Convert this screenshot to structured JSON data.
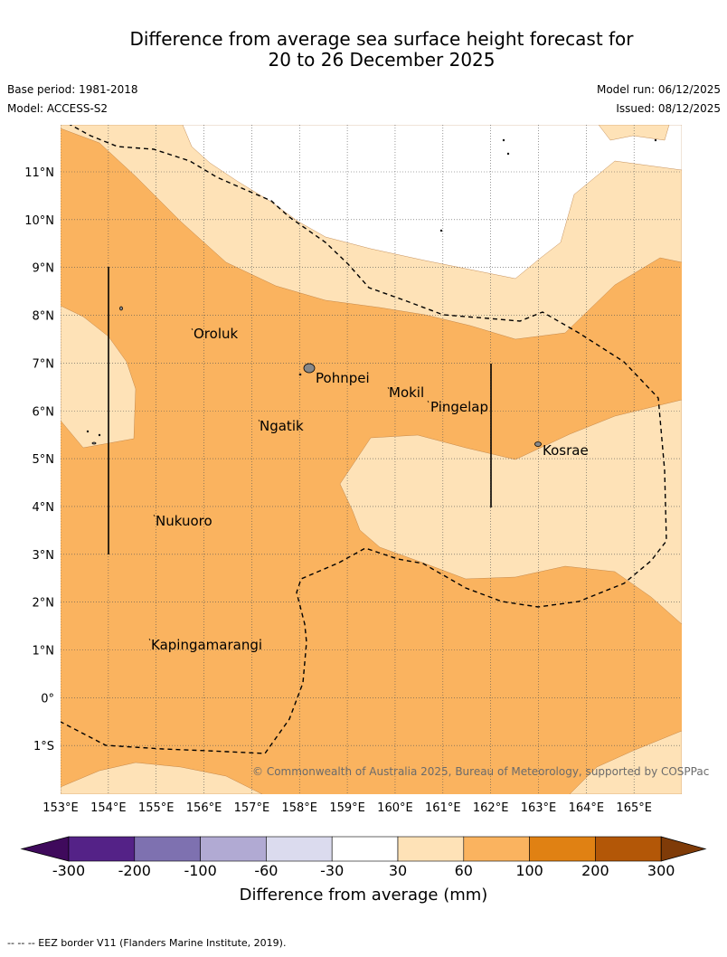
{
  "title_line1": "Difference from average sea surface height forecast for",
  "title_line2": "20 to 26 December 2025",
  "base_period": "Base period: 1981-2018",
  "model": "Model: ACCESS-S2",
  "model_run": "Model run: 06/12/2025",
  "issued": "Issued: 08/12/2025",
  "lon_ticks": [
    "153°E",
    "154°E",
    "155°E",
    "156°E",
    "157°E",
    "158°E",
    "159°E",
    "160°E",
    "161°E",
    "162°E",
    "163°E",
    "164°E",
    "165°E"
  ],
  "lat_ticks": [
    "11°N",
    "10°N",
    "9°N",
    "8°N",
    "7°N",
    "6°N",
    "5°N",
    "4°N",
    "3°N",
    "2°N",
    "1°N",
    "0°",
    "1°S"
  ],
  "places": [
    "Oroluk",
    "Pohnpei",
    "Mokil",
    "Pingelap",
    "Ngatik",
    "Kosrae",
    "Nukuoro",
    "Kapingamarangi"
  ],
  "copyright": "© Commonwealth of Australia 2025, Bureau of Meteorology, supported by COSPPac",
  "colorbar": {
    "ticks": [
      "-300",
      "-200",
      "-100",
      "-60",
      "-30",
      "30",
      "60",
      "100",
      "200",
      "300"
    ],
    "colors": [
      "#3f0a5c",
      "#542287",
      "#7e71b0",
      "#b1aad3",
      "#dbdbee",
      "#ffffff",
      "#fee2b7",
      "#fab35f",
      "#e08113",
      "#b35707",
      "#7f3b08"
    ],
    "label": "Difference from average (mm)"
  },
  "colors": {
    "light_orange": "#fee2b7",
    "orange": "#fab35f",
    "white": "#ffffff",
    "land": "#888888"
  },
  "footer": "--  --  -- EEZ border V11 (Flanders Marine Institute, 2019)."
}
